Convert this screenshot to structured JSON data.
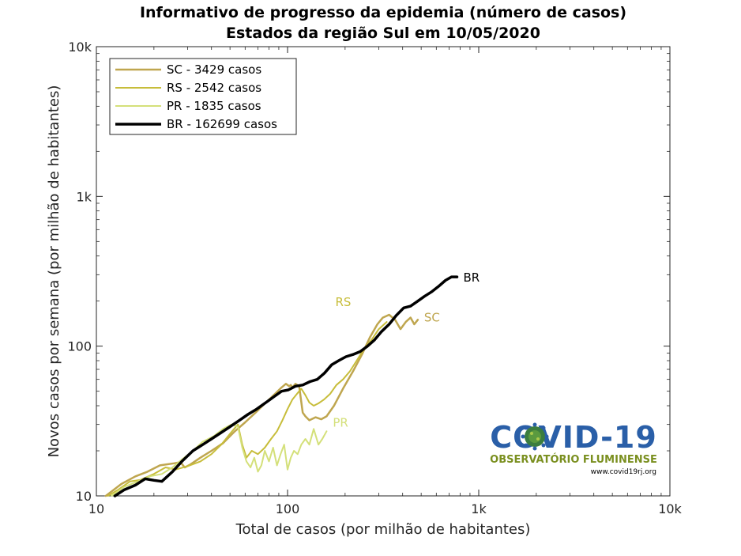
{
  "chart_data": {
    "type": "line",
    "title": "Informativo de progresso da epidemia (número de casos)",
    "subtitle": "Estados da região Sul em 10/05/2020",
    "xlabel": "Total de casos (por milhão de habitantes)",
    "ylabel": "Novos casos por semana (por milhão de habitantes)",
    "xscale": "log",
    "yscale": "log",
    "xlim": [
      10,
      10000
    ],
    "ylim": [
      10,
      10000
    ],
    "xticks": [
      10,
      100,
      1000,
      10000
    ],
    "xtick_labels": [
      "10",
      "100",
      "1k",
      "10k"
    ],
    "yticks": [
      10,
      100,
      1000,
      10000
    ],
    "ytick_labels": [
      "10",
      "100",
      "1k",
      "10k"
    ],
    "grid": false,
    "legend_position": "top-left",
    "series": [
      {
        "name": "SC - 3429 casos",
        "label": "SC",
        "color": "#bfa64f",
        "width": 2.5,
        "x": [
          11.2,
          13.5,
          16.0,
          18.5,
          21.5,
          25.5,
          27.5,
          29.0,
          31.0,
          35.0,
          40.0,
          46.0,
          53.0,
          60.0,
          68.0,
          77.0,
          86.0,
          93.0,
          98.0,
          102.0,
          104.0,
          106.0,
          110.0,
          115.0,
          120.0,
          124.0,
          130.0,
          140.0,
          150.0,
          160.0,
          175.0,
          195.0,
          220.0,
          245.0,
          270.0,
          295.0,
          315.0,
          340.0,
          365.0,
          390.0,
          415.0,
          440.0,
          460.0,
          480.0
        ],
        "y": [
          10.0,
          12.0,
          13.5,
          14.5,
          16.0,
          16.5,
          16.8,
          15.5,
          16.2,
          18.0,
          20.0,
          22.5,
          27.0,
          31.0,
          36.0,
          42.0,
          48.0,
          53.0,
          56.0,
          54.0,
          55.0,
          53.0,
          56.0,
          54.0,
          36.0,
          34.0,
          32.0,
          33.5,
          32.5,
          34.0,
          40.0,
          52.0,
          68.0,
          88.0,
          115.0,
          140.0,
          155.0,
          162.0,
          150.0,
          130.0,
          145.0,
          155.0,
          140.0,
          150.0
        ]
      },
      {
        "name": "RS - 2542 casos",
        "label": "RS",
        "color": "#c7bd3a",
        "width": 2,
        "x": [
          11.5,
          13.0,
          15.0,
          17.0,
          20.0,
          23.0,
          26.0,
          30.0,
          35.0,
          40.0,
          45.0,
          50.0,
          55.0,
          58.0,
          61.0,
          65.0,
          70.0,
          76.0,
          82.0,
          88.0,
          94.0,
          100.0,
          106.0,
          112.0,
          118.0,
          124.0,
          130.0,
          137.0,
          145.0,
          155.0,
          167.0,
          180.0,
          195.0,
          212.0,
          230.0,
          250.0,
          275.0,
          300.0,
          330.0
        ],
        "y": [
          10.0,
          11.0,
          12.5,
          12.8,
          14.0,
          15.5,
          15.0,
          15.8,
          17.0,
          19.0,
          22.0,
          26.0,
          30.0,
          22.0,
          18.0,
          20.0,
          19.0,
          21.0,
          24.0,
          27.0,
          32.0,
          38.0,
          44.0,
          48.0,
          52.0,
          47.0,
          42.0,
          40.0,
          41.5,
          44.0,
          48.0,
          55.0,
          60.0,
          68.0,
          80.0,
          95.0,
          110.0,
          130.0,
          145.0
        ]
      },
      {
        "name": "PR - 1835 casos",
        "label": "PR",
        "color": "#d4e07a",
        "width": 2,
        "x": [
          12.0,
          14.0,
          16.5,
          19.0,
          22.0,
          25.0,
          28.0,
          32.0,
          36.0,
          41.0,
          46.0,
          51.0,
          55.0,
          58.0,
          61.0,
          64.0,
          67.0,
          70.0,
          73.0,
          76.0,
          80.0,
          84.0,
          88.0,
          92.0,
          96.0,
          100.0,
          104.0,
          108.0,
          113.0,
          118.0,
          124.0,
          130.0,
          137.0,
          145.0,
          152.0,
          160.0
        ],
        "y": [
          10.0,
          11.5,
          12.5,
          13.5,
          14.0,
          15.5,
          17.5,
          20.0,
          23.0,
          25.0,
          28.0,
          30.0,
          29.0,
          21.0,
          17.0,
          15.5,
          18.0,
          14.5,
          16.0,
          20.0,
          17.0,
          21.0,
          16.0,
          19.0,
          22.0,
          15.0,
          18.0,
          20.0,
          19.0,
          22.0,
          24.0,
          22.0,
          28.0,
          22.0,
          24.0,
          27.0
        ]
      },
      {
        "name": "BR - 162699 casos",
        "label": "BR",
        "color": "#000000",
        "width": 3.5,
        "x": [
          12.5,
          14.0,
          16.0,
          18.0,
          20.0,
          22.0,
          25.0,
          28.0,
          32.0,
          36.0,
          40.0,
          45.0,
          50.0,
          56.0,
          62.0,
          69.0,
          77.0,
          85.0,
          93.0,
          101.0,
          110.0,
          120.0,
          131.0,
          143.0,
          156.0,
          170.0,
          185.0,
          202.0,
          220.0,
          240.0,
          262.0,
          285.0,
          310.0,
          340.0,
          370.0,
          405.0,
          440.0,
          480.0,
          520.0,
          565.0,
          615.0,
          670.0,
          720.0,
          770.0
        ],
        "y": [
          10.0,
          11.0,
          11.8,
          13.0,
          12.7,
          12.5,
          14.5,
          17.0,
          20.0,
          22.0,
          24.0,
          26.5,
          29.0,
          32.0,
          35.0,
          38.0,
          42.0,
          46.0,
          50.0,
          51.0,
          54.0,
          55.0,
          58.0,
          60.0,
          66.0,
          75.0,
          80.0,
          85.0,
          88.0,
          92.0,
          100.0,
          110.0,
          125.0,
          140.0,
          160.0,
          180.0,
          185.0,
          200.0,
          215.0,
          230.0,
          250.0,
          275.0,
          290.0,
          290.0
        ]
      }
    ]
  },
  "logo": {
    "text": "COVID-19",
    "subtitle": "OBSERVATÓRIO FLUMINENSE",
    "url": "www.covid19rj.org"
  }
}
